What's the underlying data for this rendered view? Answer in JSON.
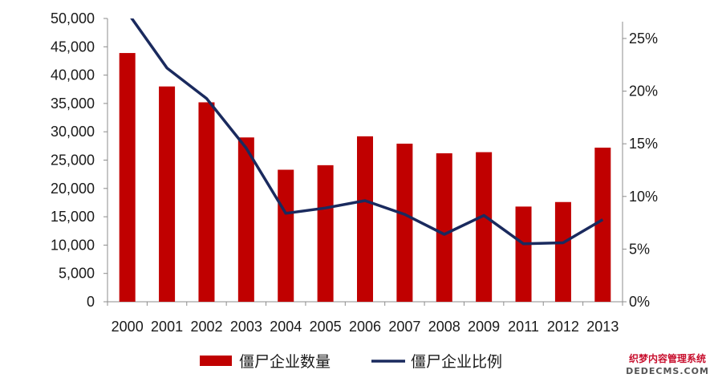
{
  "chart_data": {
    "type": "bar",
    "categories": [
      "2000",
      "2001",
      "2002",
      "2003",
      "2004",
      "2005",
      "2006",
      "2007",
      "2008",
      "2009",
      "2011",
      "2012",
      "2013"
    ],
    "series": [
      {
        "name": "僵尸企业数量",
        "type": "bar",
        "axis": "left",
        "color": "#c00000",
        "values": [
          43900,
          38000,
          35200,
          29000,
          23300,
          24100,
          29200,
          27900,
          26200,
          26400,
          16800,
          17600,
          27200
        ]
      },
      {
        "name": "僵尸企业比例",
        "type": "line",
        "axis": "right",
        "color": "#1a2a5e",
        "values": [
          27.5,
          22.2,
          19.3,
          14.6,
          8.4,
          8.9,
          9.6,
          8.3,
          6.4,
          8.2,
          5.5,
          5.6,
          7.8
        ]
      }
    ],
    "y_left": {
      "ylim": [
        0,
        50000
      ],
      "ticks": [
        0,
        5000,
        10000,
        15000,
        20000,
        25000,
        30000,
        35000,
        40000,
        45000,
        50000
      ],
      "tick_labels": [
        "0",
        "5,000",
        "10,000",
        "15,000",
        "20,000",
        "25,000",
        "30,000",
        "35,000",
        "40,000",
        "45,000",
        "50,000"
      ]
    },
    "y_right": {
      "ylim": [
        0,
        26.9
      ],
      "ticks": [
        0,
        5,
        10,
        15,
        20,
        25
      ],
      "tick_labels": [
        "0%",
        "5%",
        "10%",
        "15%",
        "20%",
        "25%"
      ]
    },
    "grid": false,
    "legend_position": "bottom"
  },
  "watermark": {
    "line1": "织梦内容管理系统",
    "line2": "DEDECMS.COM"
  }
}
